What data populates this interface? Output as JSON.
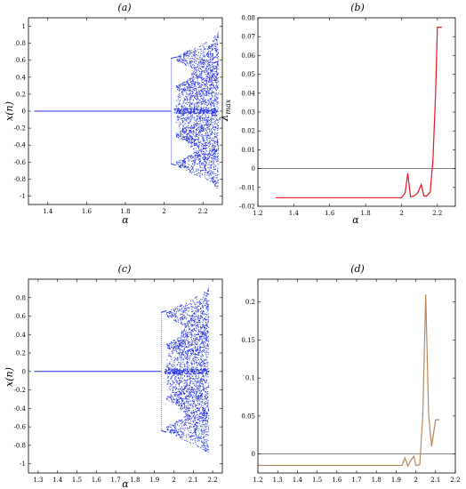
{
  "colors": {
    "diagram": "#1f2ee6",
    "lyapunov_b": "#e8141e",
    "lyapunov_d": "#b8865a",
    "zero_line": "#555555",
    "frame": "#000000"
  },
  "chart_data": [
    {
      "id": "a",
      "type": "scatter",
      "title": "(a)",
      "xlabel": "α",
      "ylabel": "x(n)",
      "xlim": [
        1.3,
        2.3
      ],
      "ylim": [
        -1.1,
        1.1
      ],
      "xticks": [
        1.4,
        1.6,
        1.8,
        2,
        2.2
      ],
      "yticks": [
        -1,
        -0.8,
        -0.6,
        -0.4,
        -0.2,
        0,
        0.2,
        0.4,
        0.6,
        0.8,
        1
      ],
      "bifurcation": {
        "fixed_until": 2.035,
        "period2_until": 2.062,
        "chaos_until": 2.28,
        "fixed_value": 0,
        "period2_values": [
          -0.62,
          0.62
        ],
        "max_amplitude": 0.95
      }
    },
    {
      "id": "b",
      "type": "line",
      "title": "(b)",
      "xlabel": "α",
      "ylabel": "λmax",
      "ylabel_main": "λ",
      "ylabel_sub": "max",
      "xlim": [
        1.2,
        2.3
      ],
      "ylim": [
        -0.02,
        0.08
      ],
      "xticks": [
        1.2,
        1.4,
        1.6,
        1.8,
        2,
        2.2
      ],
      "yticks": [
        -0.02,
        -0.01,
        0,
        0.01,
        0.02,
        0.03,
        0.04,
        0.05,
        0.06,
        0.07,
        0.08
      ],
      "zero_line": 0,
      "x": [
        1.3,
        1.5,
        1.7,
        1.9,
        2.0,
        2.02,
        2.035,
        2.05,
        2.07,
        2.09,
        2.11,
        2.125,
        2.14,
        2.16,
        2.175,
        2.19,
        2.2,
        2.21,
        2.225
      ],
      "y": [
        -0.0155,
        -0.0155,
        -0.0155,
        -0.0155,
        -0.0155,
        -0.013,
        -0.0025,
        -0.015,
        -0.0145,
        -0.013,
        -0.0085,
        -0.0145,
        -0.0145,
        -0.0125,
        0.004,
        0.04,
        0.075,
        0.075,
        0.075
      ]
    },
    {
      "id": "c",
      "type": "scatter",
      "title": "(c)",
      "xlabel": "α",
      "ylabel": "x(n)",
      "xlim": [
        1.25,
        2.25
      ],
      "ylim": [
        -1.1,
        1.0
      ],
      "xticks": [
        1.3,
        1.4,
        1.5,
        1.6,
        1.7,
        1.8,
        1.9,
        2,
        2.1,
        2.2
      ],
      "yticks": [
        -1,
        -0.8,
        -0.6,
        -0.4,
        -0.2,
        0,
        0.2,
        0.4,
        0.6,
        0.8
      ],
      "bifurcation": {
        "fixed_until": 1.935,
        "period2_until": 1.962,
        "chaos_until": 2.18,
        "fixed_value": 0,
        "period2_values": [
          -0.64,
          0.64
        ],
        "max_amplitude": 0.92
      }
    },
    {
      "id": "d",
      "type": "line",
      "title": "(d)",
      "xlabel": "",
      "ylabel": "",
      "xlim": [
        1.2,
        2.2
      ],
      "ylim": [
        -0.025,
        0.23
      ],
      "xticks": [
        1.2,
        1.3,
        1.4,
        1.5,
        1.6,
        1.7,
        1.8,
        1.9,
        2,
        2.1,
        2.2
      ],
      "yticks": [
        0,
        0.05,
        0.1,
        0.15,
        0.2
      ],
      "zero_line": 0,
      "x": [
        1.2,
        1.4,
        1.6,
        1.8,
        1.93,
        1.945,
        1.96,
        1.975,
        1.99,
        2.0,
        2.02,
        2.035,
        2.05,
        2.065,
        2.08,
        2.1,
        2.12
      ],
      "y": [
        -0.015,
        -0.015,
        -0.015,
        -0.015,
        -0.015,
        -0.005,
        -0.016,
        -0.008,
        -0.003,
        -0.015,
        -0.014,
        0.05,
        0.21,
        0.05,
        0.01,
        0.045,
        0.045
      ]
    }
  ]
}
